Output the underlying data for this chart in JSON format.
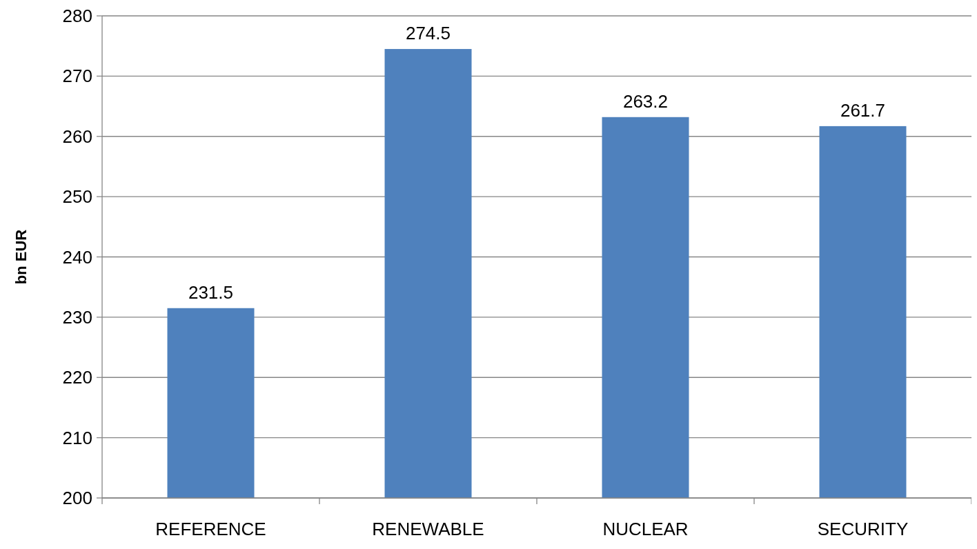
{
  "chart_data": {
    "type": "bar",
    "ylabel": "bn EUR",
    "categories": [
      "REFERENCE",
      "RENEWABLE",
      "NUCLEAR",
      "SECURITY"
    ],
    "values": [
      231.5,
      274.5,
      263.2,
      261.7
    ],
    "color": "#4f81bd",
    "ylim": [
      200,
      280
    ],
    "yticks": [
      200,
      210,
      220,
      230,
      240,
      250,
      260,
      270,
      280
    ],
    "grid": "y",
    "data_labels": true
  }
}
